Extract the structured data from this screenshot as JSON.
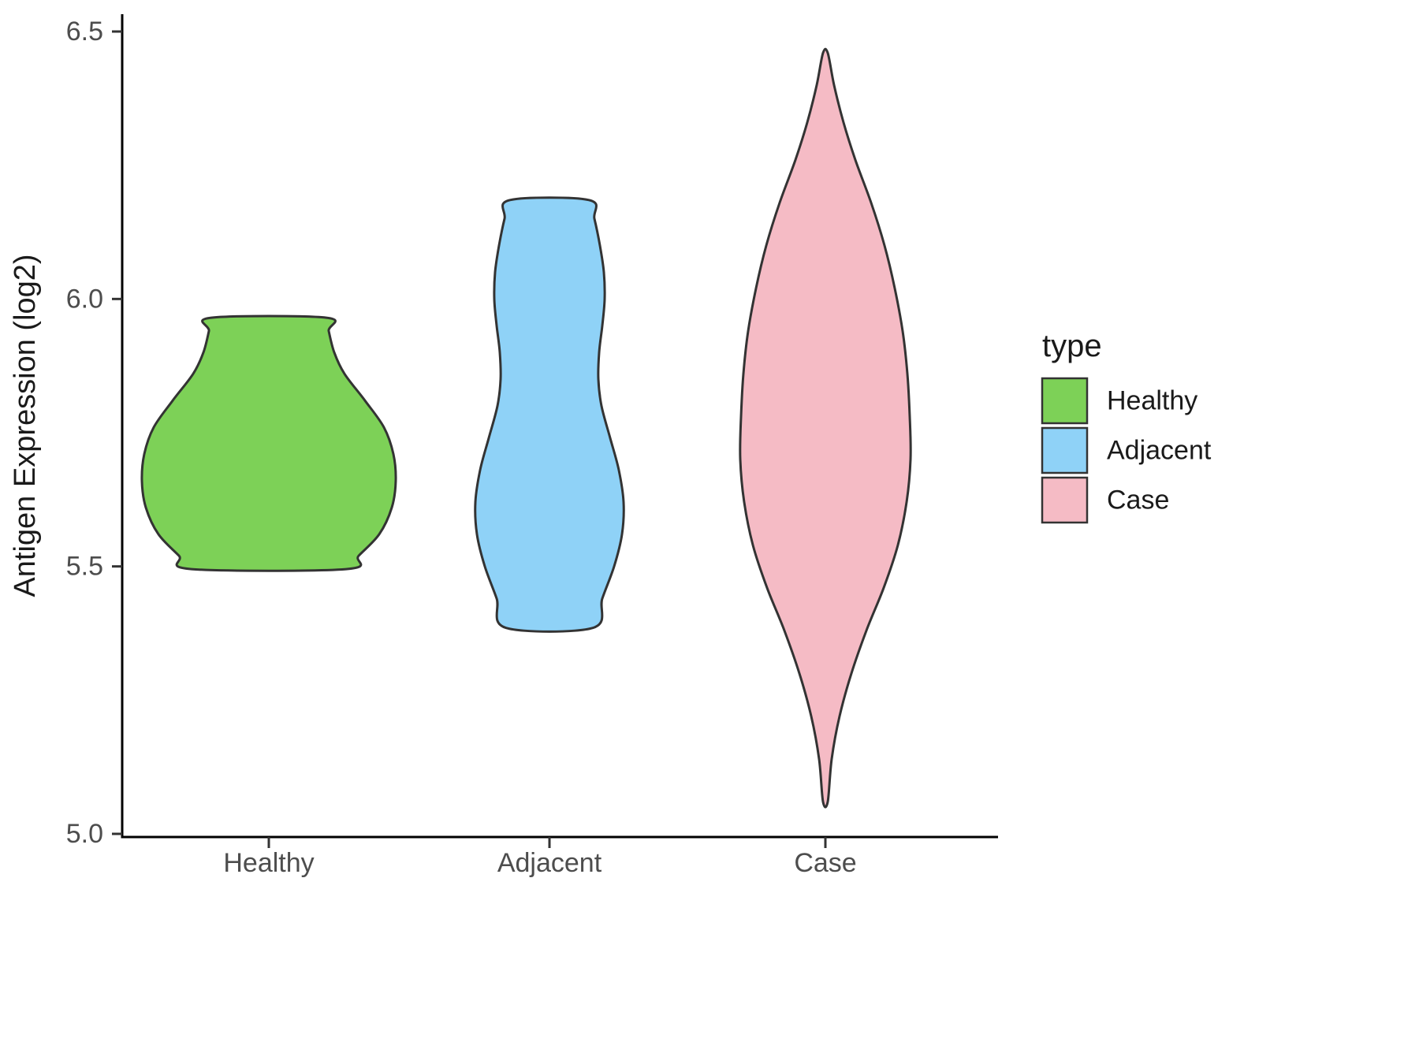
{
  "chart_data": {
    "type": "violin",
    "title": "",
    "xlabel": "",
    "ylabel": "Antigen Expression (log2)",
    "ylim": [
      5.0,
      6.5
    ],
    "yticks": [
      5.0,
      5.5,
      6.0,
      6.5
    ],
    "ytick_labels": [
      "5.0",
      "5.5",
      "6.0",
      "6.5"
    ],
    "categories": [
      "Healthy",
      "Adjacent",
      "Case"
    ],
    "grid": false,
    "legend_position": "right",
    "legend": {
      "title": "type",
      "entries": [
        {
          "label": "Healthy",
          "color": "#7DD157"
        },
        {
          "label": "Adjacent",
          "color": "#8FD2F7"
        },
        {
          "label": "Case",
          "color": "#F5BBC5"
        }
      ]
    },
    "colors": {
      "outline": "#333333",
      "axis": "#000000",
      "tick": "#333333",
      "tick_label": "#4D4D4D",
      "background": "#FFFFFF"
    },
    "series": [
      {
        "name": "Healthy",
        "color": "#7DD157",
        "value_range": [
          5.495,
          5.965
        ],
        "profile": [
          [
            5.965,
            73
          ],
          [
            5.94,
            76
          ],
          [
            5.9,
            83
          ],
          [
            5.86,
            96
          ],
          [
            5.81,
            122
          ],
          [
            5.76,
            146
          ],
          [
            5.71,
            158
          ],
          [
            5.66,
            161
          ],
          [
            5.61,
            156
          ],
          [
            5.56,
            140
          ],
          [
            5.52,
            114
          ],
          [
            5.495,
            98
          ]
        ]
      },
      {
        "name": "Adjacent",
        "color": "#8FD2F7",
        "value_range": [
          5.385,
          6.185
        ],
        "profile": [
          [
            6.185,
            50
          ],
          [
            6.15,
            57
          ],
          [
            6.1,
            64
          ],
          [
            6.05,
            69
          ],
          [
            6.0,
            70
          ],
          [
            5.95,
            67
          ],
          [
            5.9,
            63
          ],
          [
            5.85,
            62
          ],
          [
            5.8,
            66
          ],
          [
            5.74,
            77
          ],
          [
            5.68,
            88
          ],
          [
            5.62,
            94
          ],
          [
            5.56,
            92
          ],
          [
            5.5,
            82
          ],
          [
            5.44,
            67
          ],
          [
            5.385,
            55
          ]
        ]
      },
      {
        "name": "Case",
        "color": "#F5BBC5",
        "value_range": [
          5.06,
          6.46
        ],
        "profile": [
          [
            6.46,
            3
          ],
          [
            6.4,
            11
          ],
          [
            6.33,
            23
          ],
          [
            6.26,
            38
          ],
          [
            6.18,
            58
          ],
          [
            6.1,
            75
          ],
          [
            6.02,
            88
          ],
          [
            5.94,
            98
          ],
          [
            5.86,
            104
          ],
          [
            5.78,
            107
          ],
          [
            5.7,
            108
          ],
          [
            5.62,
            103
          ],
          [
            5.54,
            92
          ],
          [
            5.46,
            74
          ],
          [
            5.38,
            52
          ],
          [
            5.3,
            33
          ],
          [
            5.22,
            18
          ],
          [
            5.14,
            8
          ],
          [
            5.06,
            3
          ]
        ]
      }
    ]
  }
}
